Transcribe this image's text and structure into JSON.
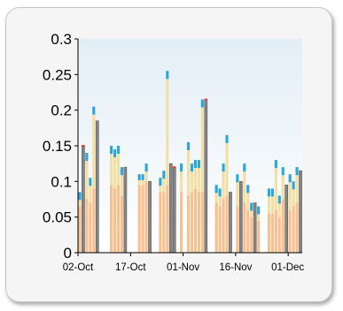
{
  "chart_data": {
    "type": "bar",
    "title": "",
    "xlabel": "",
    "ylabel": "",
    "ylim": [
      0,
      0.3
    ],
    "yticks": [
      "0",
      "0.05",
      "0.1",
      "0.15",
      "0.2",
      "0.25",
      "0.3"
    ],
    "xticks": [
      "02-Oct",
      "17-Oct",
      "01-Nov",
      "16-Nov",
      "01-Dec"
    ],
    "xrange": [
      "02-Oct",
      "05-Dec"
    ],
    "grid": false,
    "colors": {
      "plot_bg_top": "#e2eef6",
      "plot_bg_bottom": "#ffffff",
      "base": "#f9bf8c",
      "upper": "#f4dfa3",
      "cap": "#2aa6dd",
      "dark_bar": "#848484",
      "dark_bar_edge": "#5f5f5f",
      "red_cap": "#ef3a2a"
    },
    "series": [
      {
        "name": "",
        "points": [
          {
            "date": "02-Oct",
            "total": 0.085,
            "base": 0.065
          },
          {
            "date": "04-Oct",
            "total": 0.14,
            "base": 0.075
          },
          {
            "date": "05-Oct",
            "total": 0.105,
            "base": 0.07
          },
          {
            "date": "06-Oct",
            "total": 0.205,
            "base": 0.09
          },
          {
            "date": "11-Oct",
            "total": 0.15,
            "base": 0.095
          },
          {
            "date": "12-Oct",
            "total": 0.145,
            "base": 0.09
          },
          {
            "date": "13-Oct",
            "total": 0.15,
            "base": 0.095
          },
          {
            "date": "14-Oct",
            "total": 0.12,
            "base": 0.08
          },
          {
            "date": "19-Oct",
            "total": 0.11,
            "base": 0.095
          },
          {
            "date": "20-Oct",
            "total": 0.11,
            "base": 0.095
          },
          {
            "date": "21-Oct",
            "total": 0.125,
            "base": 0.1
          },
          {
            "date": "25-Oct",
            "total": 0.105,
            "base": 0.085
          },
          {
            "date": "26-Oct",
            "total": 0.115,
            "base": 0.085
          },
          {
            "date": "27-Oct",
            "total": 0.255,
            "base": 0.095
          },
          {
            "date": "31-Oct",
            "total": 0.125,
            "base": 0.085
          },
          {
            "date": "02-Nov",
            "total": 0.155,
            "base": 0.08
          },
          {
            "date": "03-Nov",
            "total": 0.125,
            "base": 0.085
          },
          {
            "date": "04-Nov",
            "total": 0.13,
            "base": 0.09
          },
          {
            "date": "05-Nov",
            "total": 0.13,
            "base": 0.085
          },
          {
            "date": "06-Nov",
            "total": 0.215,
            "base": 0.085
          },
          {
            "date": "10-Nov",
            "total": 0.095,
            "base": 0.07
          },
          {
            "date": "11-Nov",
            "total": 0.09,
            "base": 0.065
          },
          {
            "date": "12-Nov",
            "total": 0.125,
            "base": 0.075
          },
          {
            "date": "13-Nov",
            "total": 0.165,
            "base": 0.08
          },
          {
            "date": "16-Nov",
            "total": 0.11,
            "base": 0.065
          },
          {
            "date": "18-Nov",
            "total": 0.125,
            "base": 0.07
          },
          {
            "date": "19-Nov",
            "total": 0.095,
            "base": 0.06
          },
          {
            "date": "20-Nov",
            "total": 0.07,
            "base": 0.05
          },
          {
            "date": "22-Nov",
            "total": 0.065,
            "base": 0.045
          },
          {
            "date": "25-Nov",
            "total": 0.09,
            "base": 0.055
          },
          {
            "date": "26-Nov",
            "total": 0.09,
            "base": 0.055
          },
          {
            "date": "27-Nov",
            "total": 0.13,
            "base": 0.06
          },
          {
            "date": "28-Nov",
            "total": 0.08,
            "base": 0.05
          },
          {
            "date": "29-Nov",
            "total": 0.12,
            "base": 0.075
          },
          {
            "date": "01-Dec",
            "total": 0.11,
            "base": 0.06
          },
          {
            "date": "02-Dec",
            "total": 0.1,
            "base": 0.065
          },
          {
            "date": "03-Dec",
            "total": 0.12,
            "base": 0.07
          }
        ]
      },
      {
        "name": "",
        "points": [
          {
            "date": "03-Oct",
            "value": 0.15,
            "red_cap": true
          },
          {
            "date": "07-Oct",
            "value": 0.185,
            "red_cap": false
          },
          {
            "date": "15-Oct",
            "value": 0.12,
            "red_cap": false
          },
          {
            "date": "22-Oct",
            "value": 0.1,
            "red_cap": false
          },
          {
            "date": "28-Oct",
            "value": 0.125,
            "red_cap": false
          },
          {
            "date": "29-Oct",
            "value": 0.12,
            "red_cap": true
          },
          {
            "date": "07-Nov",
            "value": 0.215,
            "red_cap": true
          },
          {
            "date": "14-Nov",
            "value": 0.085,
            "red_cap": false
          },
          {
            "date": "17-Nov",
            "value": 0.1,
            "red_cap": false
          },
          {
            "date": "21-Nov",
            "value": 0.07,
            "red_cap": false
          },
          {
            "date": "30-Nov",
            "value": 0.095,
            "red_cap": false
          },
          {
            "date": "04-Dec",
            "value": 0.115,
            "red_cap": false
          }
        ]
      }
    ]
  }
}
